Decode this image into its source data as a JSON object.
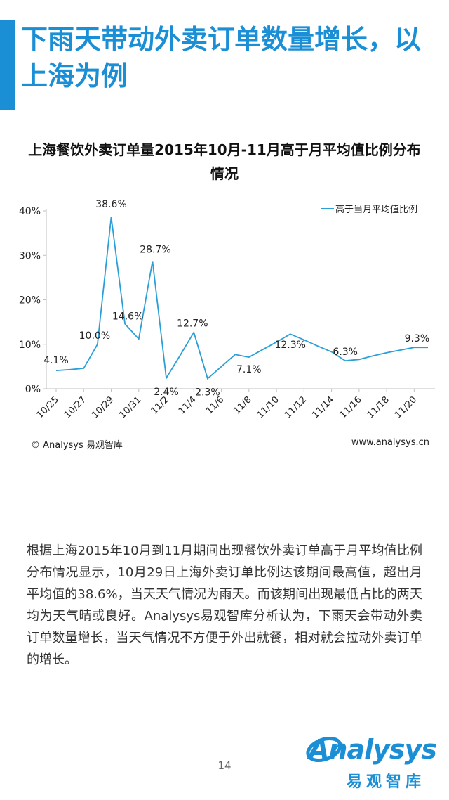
{
  "page": {
    "title": "下雨天带动外卖订单数量增长，以上海为例",
    "body_text": "根据上海2015年10月到11月期间出现餐饮外卖订单高于月平均值比例分布情况显示，10月29日上海外卖订单比例达该期间最高值，超出月平均值的38.6%，当天天气情况为雨天。而该期间出现最低占比的两天均为天气晴或良好。Analysys易观智库分析认为，下雨天会带动外卖订单数量增长，当天气情况不方便于外出就餐，相对就会拉动外卖订单的增长。",
    "copyright": "© Analysys 易观智库",
    "site_url": "www.analysys.cn",
    "page_number": "14",
    "logo_word": "Analysys",
    "logo_cn": "易观智库",
    "accent_color": "#1a8fd6"
  },
  "chart_data": {
    "type": "line",
    "title": "上海餐饮外卖订单量2015年10月-11月高于月平均值比例分布情况",
    "x": [
      "10/25",
      "10/26",
      "10/27",
      "10/28",
      "10/29",
      "10/30",
      "10/31",
      "11/1",
      "11/2",
      "11/3",
      "11/4",
      "11/5",
      "11/6",
      "11/7",
      "11/8",
      "11/9",
      "11/10",
      "11/11",
      "11/12",
      "11/13",
      "11/14",
      "11/15",
      "11/16",
      "11/17",
      "11/18",
      "11/19",
      "11/20",
      "11/21"
    ],
    "x_tick_labels": [
      "10/25",
      "10/27",
      "10/29",
      "10/31",
      "11/2",
      "11/4",
      "11/6",
      "11/8",
      "11/10",
      "11/12",
      "11/14",
      "11/16",
      "11/18",
      "11/20"
    ],
    "series": [
      {
        "name": "高于当月平均值比例",
        "color": "#2a9fd8",
        "values": [
          4.1,
          4.3,
          4.6,
          10.0,
          38.6,
          14.6,
          11.2,
          28.7,
          2.4,
          7.5,
          12.7,
          2.3,
          5.0,
          7.7,
          7.1,
          8.8,
          10.5,
          12.3,
          11.0,
          9.6,
          8.3,
          6.3,
          6.6,
          7.4,
          8.1,
          8.7,
          9.3,
          9.3
        ]
      }
    ],
    "data_labels": [
      {
        "x": "10/25",
        "text": "4.1%"
      },
      {
        "x": "10/28",
        "text": "10.0%"
      },
      {
        "x": "10/29",
        "text": "38.6%"
      },
      {
        "x": "10/30",
        "text": "14.6%"
      },
      {
        "x": "11/1",
        "text": "28.7%"
      },
      {
        "x": "11/2",
        "text": "2.4%"
      },
      {
        "x": "11/4",
        "text": "12.7%"
      },
      {
        "x": "11/5",
        "text": "2.3%"
      },
      {
        "x": "11/8",
        "text": "7.1%"
      },
      {
        "x": "11/11",
        "text": "12.3%"
      },
      {
        "x": "11/15",
        "text": "6.3%"
      },
      {
        "x": "11/20",
        "text": "9.3%"
      }
    ],
    "y_ticks": [
      "0%",
      "10%",
      "20%",
      "30%",
      "40%"
    ],
    "ylim": [
      0,
      40
    ],
    "grid": false,
    "legend_position": "top-right"
  }
}
